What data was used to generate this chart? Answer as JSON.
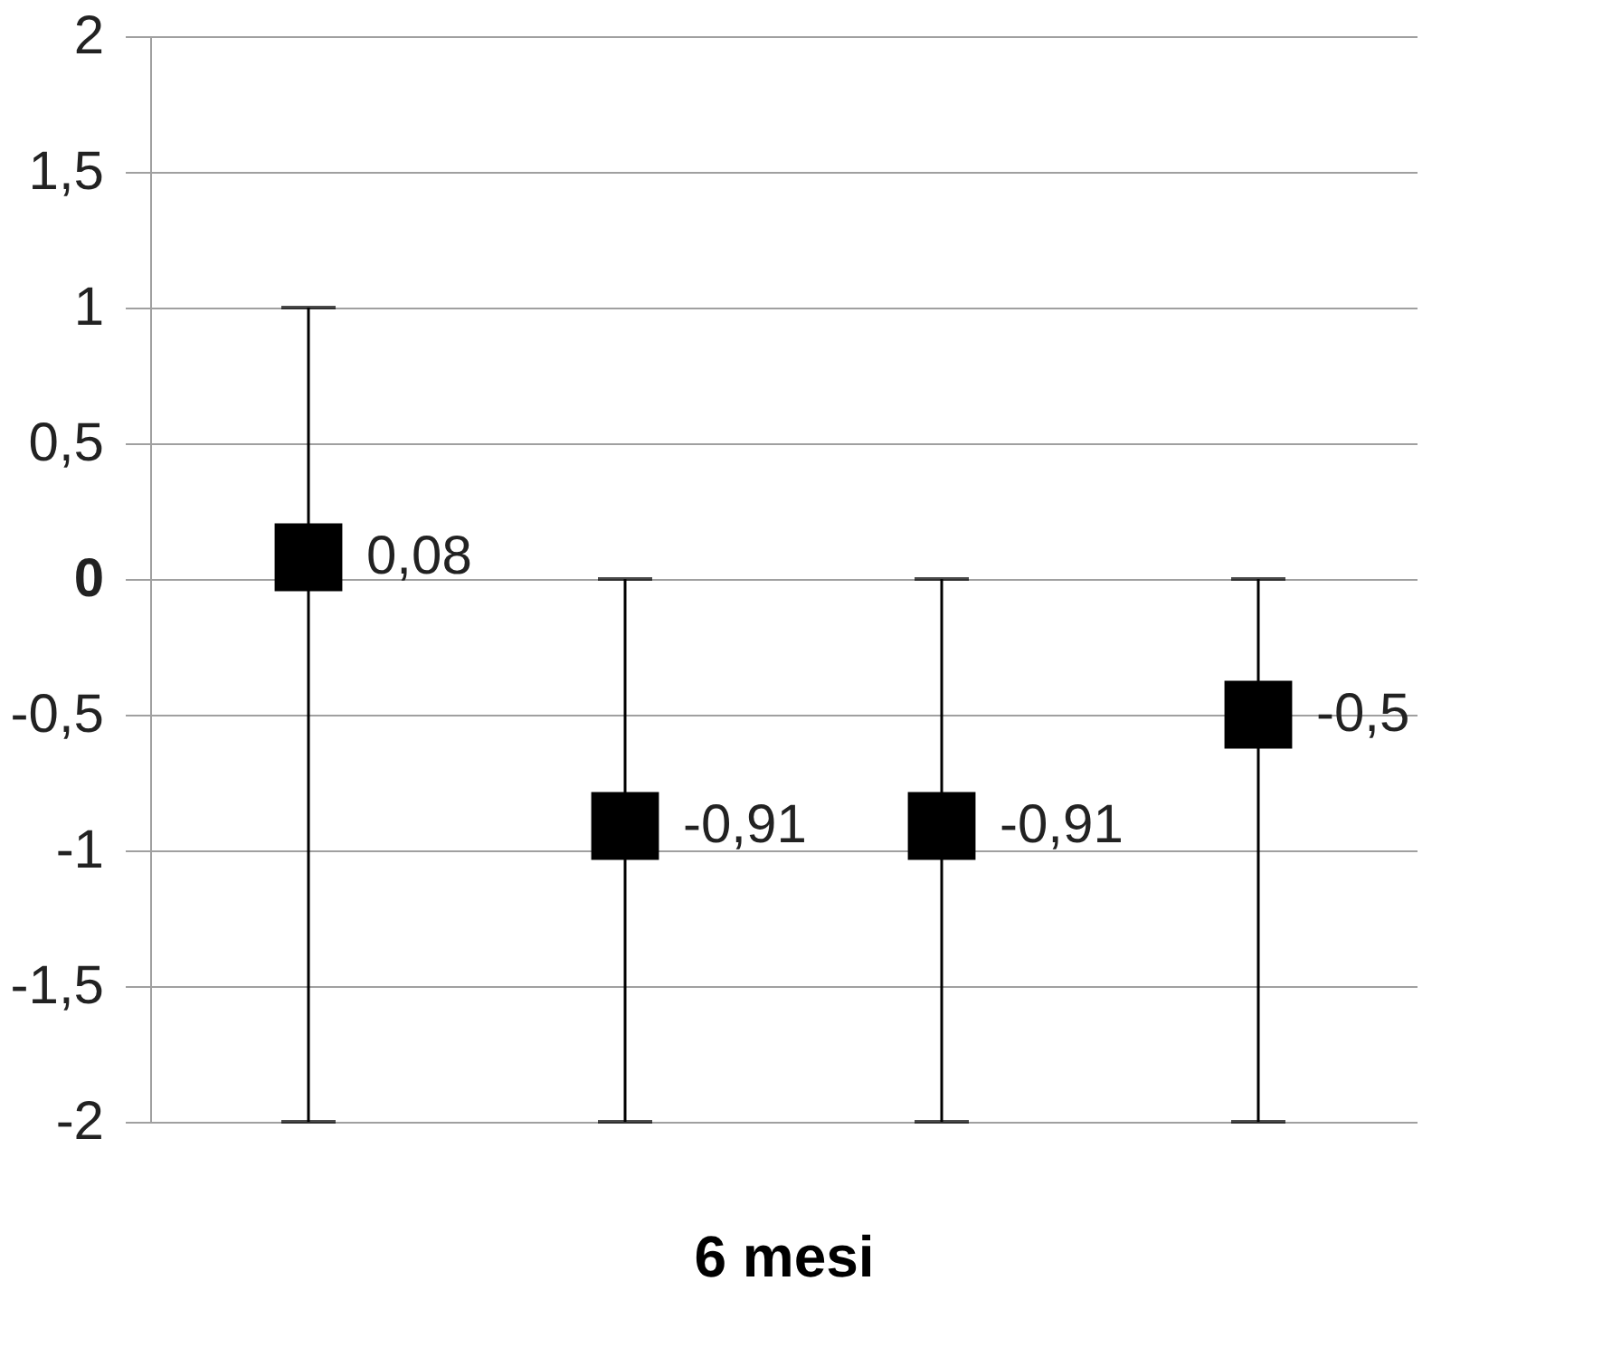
{
  "chart_data": {
    "type": "scatter",
    "xlabel": "6 mesi",
    "categories": [
      null,
      null,
      null,
      null
    ],
    "values": [
      0.08,
      -0.91,
      -0.91,
      -0.5
    ],
    "errors": [
      [
        -2,
        1
      ],
      [
        -2,
        0
      ],
      [
        -2,
        0
      ],
      [
        -2,
        0
      ]
    ],
    "value_labels": [
      "0,08",
      "-0,91",
      "-0,91",
      "-0,5"
    ],
    "color": "#000000",
    "marker": "square",
    "ylim": [
      -2,
      2
    ],
    "yticks": [
      {
        "value": -2,
        "label": "-2"
      },
      {
        "value": -1.5,
        "label": "-1,5"
      },
      {
        "value": -1,
        "label": "-1"
      },
      {
        "value": -0.5,
        "label": "-0,5"
      },
      {
        "value": 0,
        "label": "0"
      },
      {
        "value": 0.5,
        "label": "0,5"
      },
      {
        "value": 1,
        "label": "1"
      },
      {
        "value": 1.5,
        "label": "1,5"
      },
      {
        "value": 2,
        "label": "2"
      }
    ],
    "grid": "y"
  }
}
